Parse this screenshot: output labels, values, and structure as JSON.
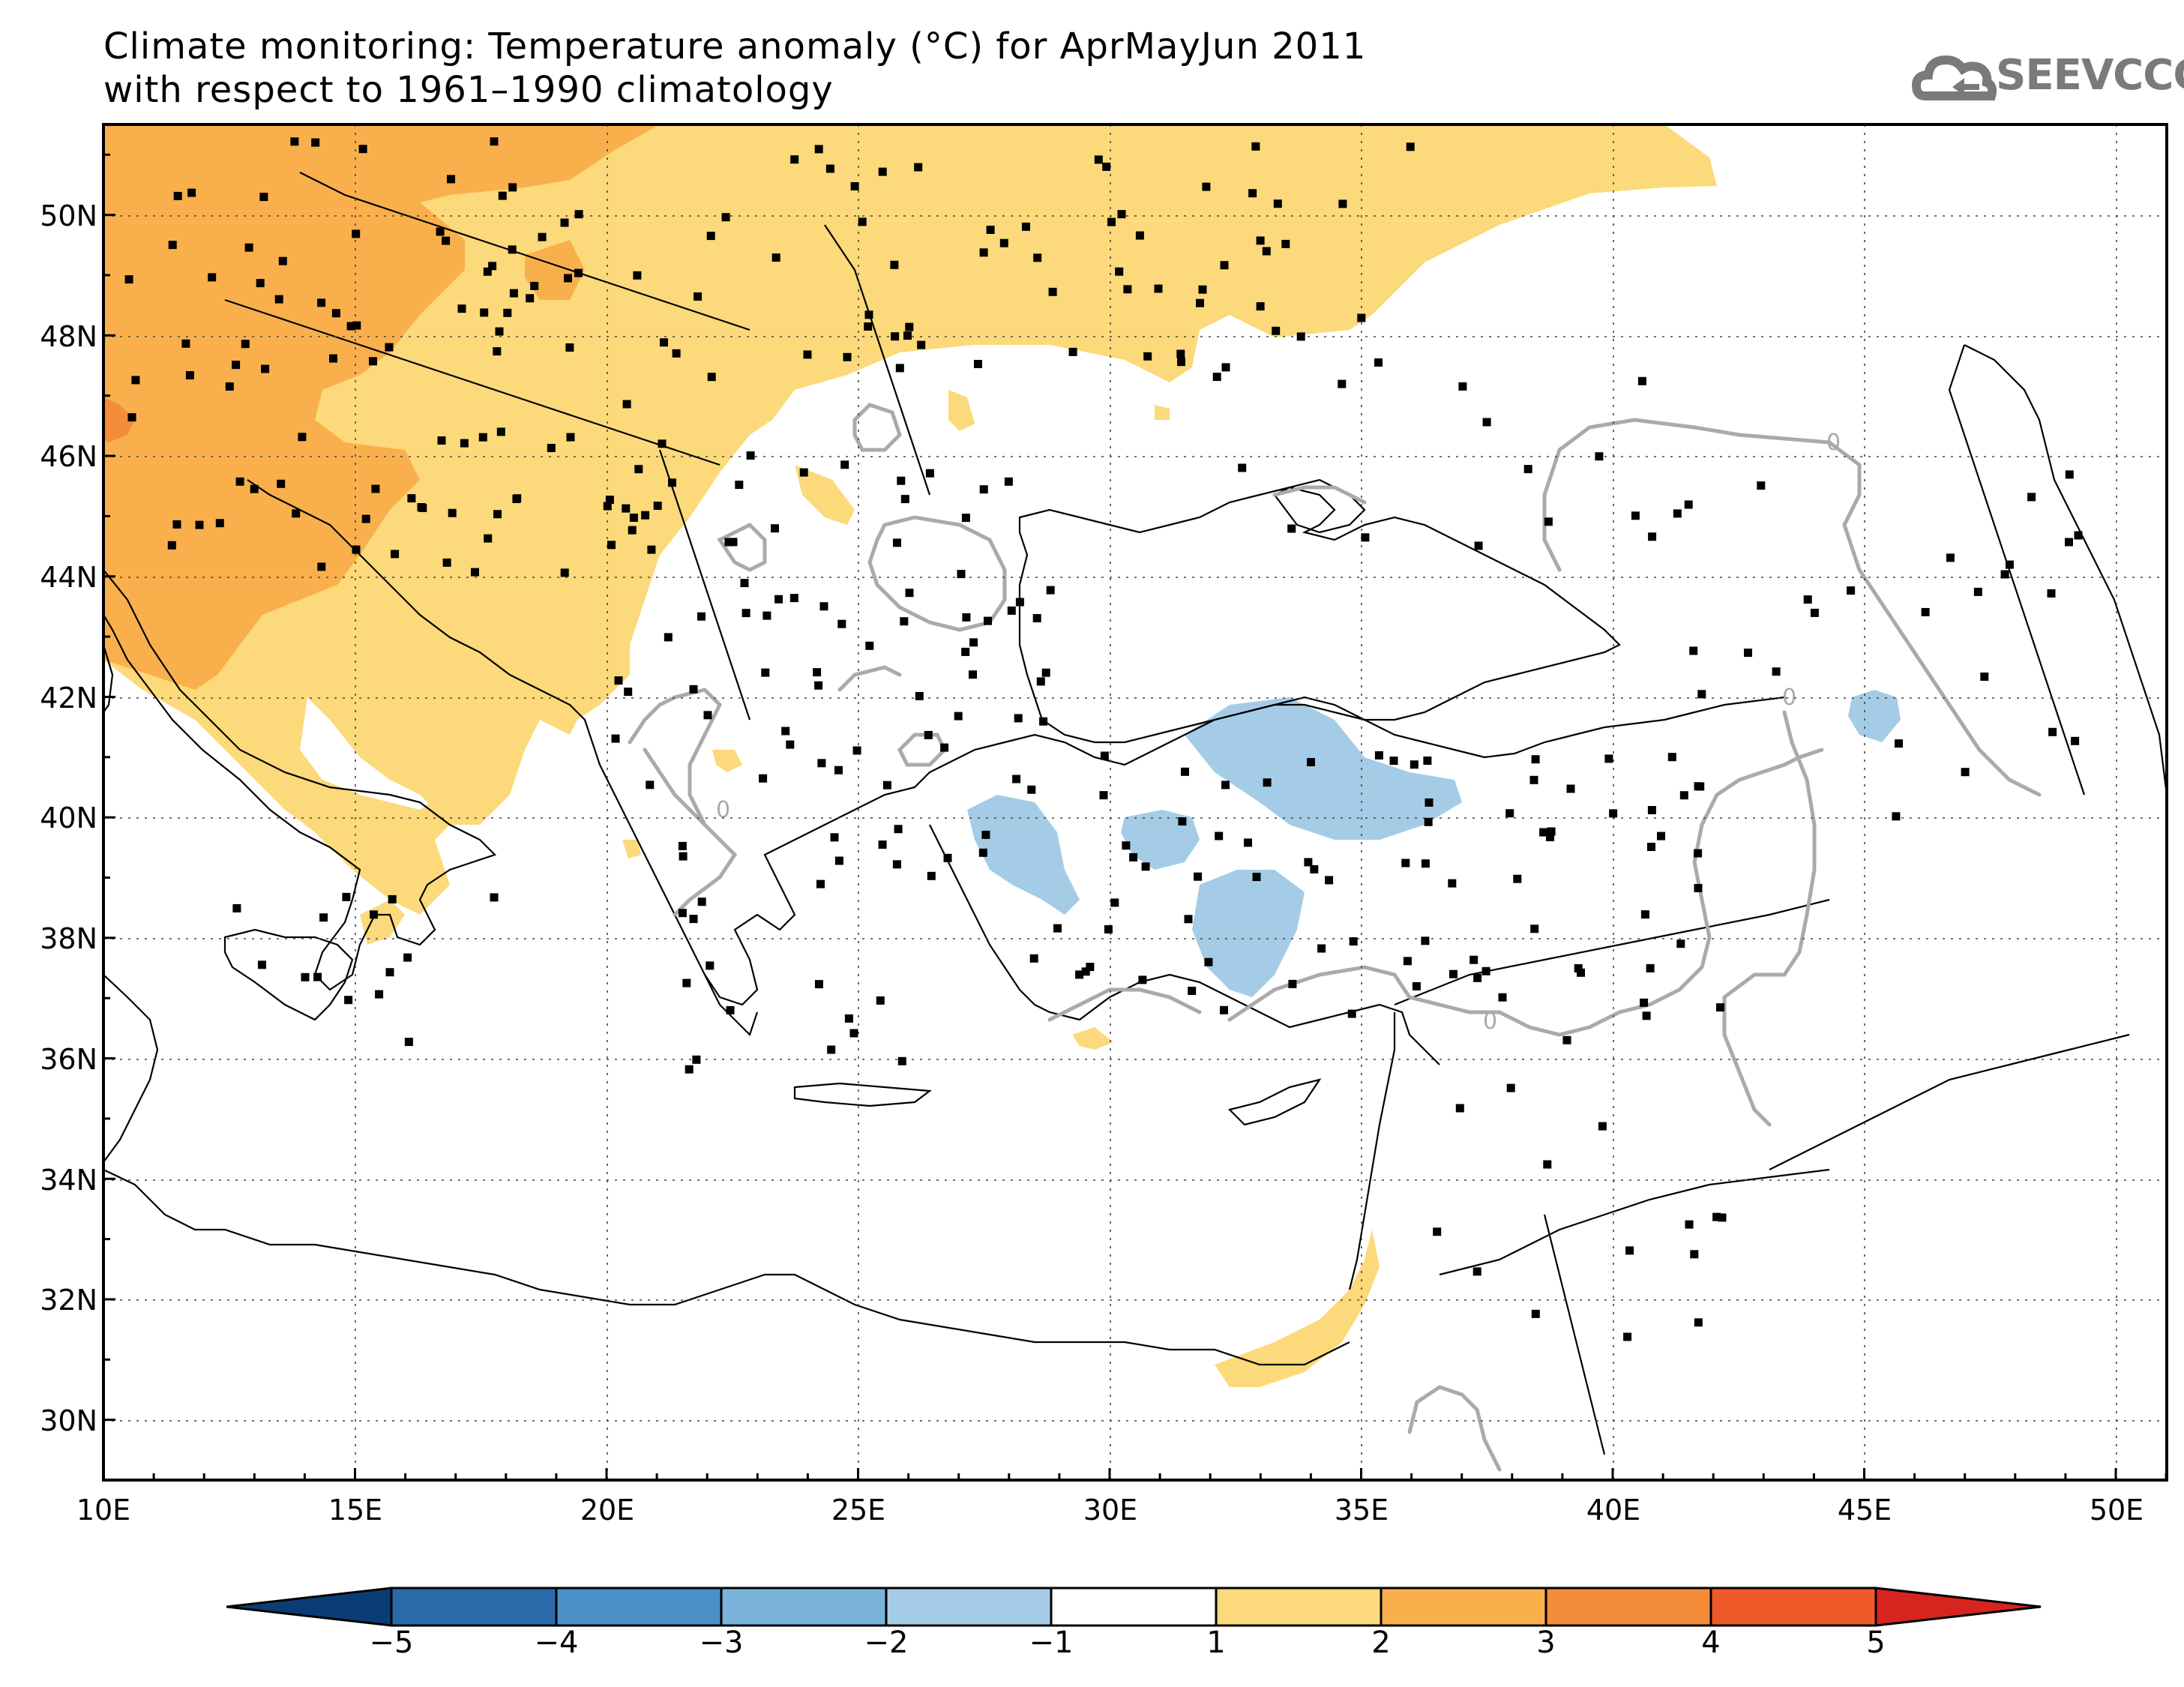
{
  "title": {
    "line1": "Climate monitoring: Temperature anomaly (°C) for AprMayJun 2011",
    "line2": "with respect to 1961–1990 climatology"
  },
  "logo": {
    "text": "SEEVCCC",
    "icon": "cloud-icon"
  },
  "map": {
    "lon_range": [
      10,
      51
    ],
    "lat_range": [
      29,
      51.5
    ],
    "x_ticks": [
      "10E",
      "15E",
      "20E",
      "25E",
      "30E",
      "35E",
      "40E",
      "45E",
      "50E"
    ],
    "y_ticks": [
      "50N",
      "48N",
      "46N",
      "44N",
      "42N",
      "40N",
      "38N",
      "36N",
      "34N",
      "32N",
      "30N"
    ],
    "contour_label": "0",
    "colors": {
      "warm1": "#fcd97a",
      "warm2": "#f9b04c",
      "warm3": "#f48c3a",
      "cool1": "#a5cce6",
      "contour": "#aaaaaa"
    }
  },
  "colorbar": {
    "labels": [
      "−5",
      "−4",
      "−3",
      "−2",
      "−1",
      "1",
      "2",
      "3",
      "4",
      "5"
    ],
    "colors": [
      "#0b3d74",
      "#2a6aab",
      "#4a91c8",
      "#7ab3dc",
      "#a5cce6",
      "#ffffff",
      "#fcd97a",
      "#f9b04c",
      "#f48c3a",
      "#ef5a2a",
      "#d8241f"
    ]
  }
}
